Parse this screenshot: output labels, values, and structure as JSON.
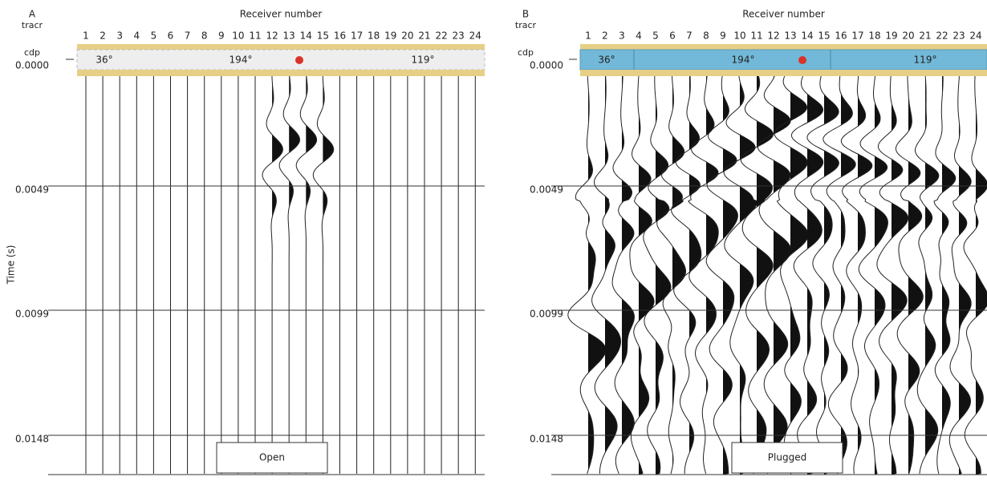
{
  "panels": [
    {
      "letter": "A",
      "tracr": "tracr",
      "x_label": "Receiver number",
      "receivers": [
        "1",
        "2",
        "3",
        "4",
        "5",
        "6",
        "7",
        "8",
        "9",
        "10",
        "11",
        "12",
        "13",
        "14",
        "15",
        "16",
        "17",
        "18",
        "19",
        "20",
        "21",
        "22",
        "23",
        "24"
      ],
      "cdp": "cdp",
      "angles": [
        "36°",
        "194°",
        "119°"
      ],
      "y_label": "Time (s)",
      "times": [
        "0.0000",
        "0.0049",
        "0.0099",
        "0.0148"
      ],
      "box_label": "Open"
    },
    {
      "letter": "B",
      "tracr": "tracr",
      "x_label": "Receiver number",
      "receivers": [
        "1",
        "2",
        "3",
        "4",
        "5",
        "6",
        "7",
        "8",
        "9",
        "10",
        "11",
        "12",
        "13",
        "14",
        "15",
        "16",
        "17",
        "18",
        "19",
        "20",
        "21",
        "22",
        "23",
        "24"
      ],
      "cdp": "cdp",
      "angles": [
        "36°",
        "194°",
        "119°"
      ],
      "times": [
        "0.0000",
        "0.0049",
        "0.0099",
        "0.0148"
      ],
      "box_label": "Plugged"
    }
  ]
}
